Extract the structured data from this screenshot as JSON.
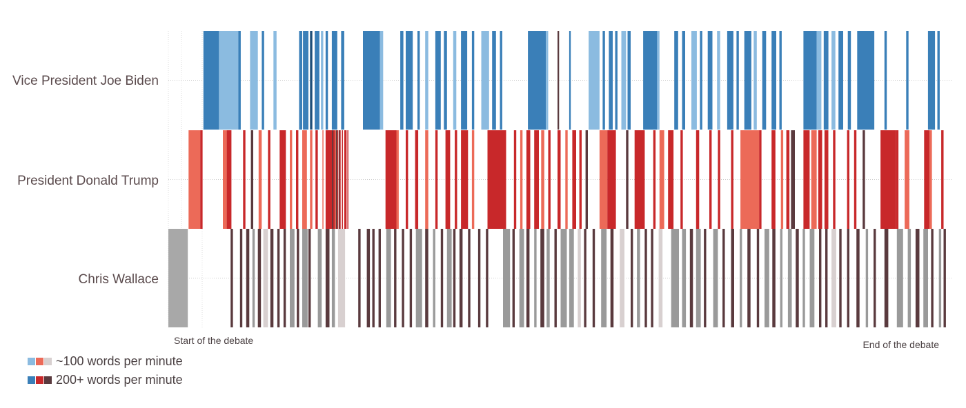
{
  "chart_data": {
    "type": "timeline",
    "rows": [
      {
        "label": "Vice President Joe Biden",
        "key": "biden",
        "color_light": "#8bbbe0",
        "color_dark": "#3a7fb8"
      },
      {
        "label": "President Donald Trump",
        "key": "trump",
        "color_light": "#ec6a58",
        "color_dark": "#c8282a"
      },
      {
        "label": "Chris Wallace",
        "key": "wallace",
        "color_light": "#d8d0d0",
        "color_dark": "#5a3a3e"
      }
    ],
    "x_start_label": "Start of the debate",
    "x_end_label": "End of the debate",
    "x_range": [
      0,
      100
    ],
    "grid": true,
    "segments": {
      "biden": [
        [
          4.5,
          2.0,
          "#3a7fb8"
        ],
        [
          6.5,
          2.5,
          "#8bbbe0"
        ],
        [
          9.0,
          0.3,
          "#3a7fb8"
        ],
        [
          10.5,
          1.0,
          "#8bbbe0"
        ],
        [
          12.0,
          0.3,
          "#3a7fb8"
        ],
        [
          13.5,
          0.4,
          "#8bbbe0"
        ],
        [
          16.8,
          0.4,
          "#3a7fb8"
        ],
        [
          17.3,
          0.7,
          "#3a7fb8"
        ],
        [
          18.2,
          0.3,
          "#1e4f7a"
        ],
        [
          18.8,
          0.6,
          "#3a7fb8"
        ],
        [
          19.6,
          0.3,
          "#8bbbe0"
        ],
        [
          20.2,
          0.3,
          "#3a7fb8"
        ],
        [
          21.0,
          0.7,
          "#3a7fb8"
        ],
        [
          22.2,
          0.4,
          "#3a7fb8"
        ],
        [
          25.0,
          2.2,
          "#3a7fb8"
        ],
        [
          27.2,
          0.4,
          "#8bbbe0"
        ],
        [
          29.8,
          0.4,
          "#3a7fb8"
        ],
        [
          30.5,
          0.9,
          "#3a7fb8"
        ],
        [
          32.0,
          0.3,
          "#3a7fb8"
        ],
        [
          33.0,
          0.4,
          "#8bbbe0"
        ],
        [
          34.3,
          0.7,
          "#3a7fb8"
        ],
        [
          35.4,
          0.4,
          "#3a7fb8"
        ],
        [
          36.6,
          0.4,
          "#8bbbe0"
        ],
        [
          37.6,
          0.8,
          "#3a7fb8"
        ],
        [
          39.0,
          0.3,
          "#3a7fb8"
        ],
        [
          40.2,
          1.0,
          "#8bbbe0"
        ],
        [
          41.6,
          0.5,
          "#3a7fb8"
        ],
        [
          42.6,
          0.3,
          "#3a7fb8"
        ],
        [
          46.2,
          2.3,
          "#3a7fb8"
        ],
        [
          48.5,
          0.3,
          "#8bbbe0"
        ],
        [
          50.0,
          0.2,
          "#5a3a3e"
        ],
        [
          51.5,
          0.2,
          "#3a7fb8"
        ],
        [
          54.0,
          1.4,
          "#8bbbe0"
        ],
        [
          55.8,
          0.3,
          "#3a7fb8"
        ],
        [
          56.6,
          0.5,
          "#3a7fb8"
        ],
        [
          57.4,
          0.3,
          "#3a7fb8"
        ],
        [
          58.2,
          0.6,
          "#8bbbe0"
        ],
        [
          59.0,
          0.4,
          "#3a7fb8"
        ],
        [
          61.0,
          1.8,
          "#3a7fb8"
        ],
        [
          62.8,
          0.3,
          "#8bbbe0"
        ],
        [
          65.0,
          0.5,
          "#3a7fb8"
        ],
        [
          66.0,
          0.4,
          "#3a7fb8"
        ],
        [
          67.2,
          0.7,
          "#8bbbe0"
        ],
        [
          68.3,
          0.3,
          "#3a7fb8"
        ],
        [
          69.3,
          0.6,
          "#3a7fb8"
        ],
        [
          70.5,
          0.4,
          "#8bbbe0"
        ],
        [
          71.8,
          0.8,
          "#3a7fb8"
        ],
        [
          73.0,
          0.3,
          "#3a7fb8"
        ],
        [
          74.0,
          0.9,
          "#3a7fb8"
        ],
        [
          75.2,
          0.4,
          "#8bbbe0"
        ],
        [
          76.3,
          0.5,
          "#3a7fb8"
        ],
        [
          77.5,
          0.6,
          "#3a7fb8"
        ],
        [
          78.5,
          0.3,
          "#3a7fb8"
        ],
        [
          81.6,
          1.7,
          "#3a7fb8"
        ],
        [
          83.3,
          0.6,
          "#8bbbe0"
        ],
        [
          84.2,
          0.6,
          "#3a7fb8"
        ],
        [
          85.2,
          0.5,
          "#8bbbe0"
        ],
        [
          86.1,
          0.6,
          "#3a7fb8"
        ],
        [
          87.3,
          0.4,
          "#3a7fb8"
        ],
        [
          88.5,
          2.2,
          "#3a7fb8"
        ],
        [
          92.0,
          0.3,
          "#3a7fb8"
        ],
        [
          94.8,
          0.3,
          "#3a7fb8"
        ],
        [
          97.6,
          0.9,
          "#3a7fb8"
        ],
        [
          98.8,
          0.3,
          "#3a7fb8"
        ]
      ],
      "trump": [
        [
          2.6,
          1.5,
          "#ec6a58"
        ],
        [
          4.1,
          0.3,
          "#c8282a"
        ],
        [
          7.0,
          0.5,
          "#ec6a58"
        ],
        [
          7.5,
          0.6,
          "#c8282a"
        ],
        [
          9.6,
          0.3,
          "#c8282a"
        ],
        [
          10.6,
          0.3,
          "#5a3a3e"
        ],
        [
          11.6,
          0.4,
          "#ec6a58"
        ],
        [
          12.8,
          0.3,
          "#c8282a"
        ],
        [
          14.3,
          0.8,
          "#c8282a"
        ],
        [
          15.6,
          0.3,
          "#ec6a58"
        ],
        [
          16.4,
          0.3,
          "#c8282a"
        ],
        [
          17.2,
          0.6,
          "#ec6a58"
        ],
        [
          18.2,
          0.3,
          "#ec6a58"
        ],
        [
          18.9,
          0.3,
          "#c8282a"
        ],
        [
          20.3,
          1.1,
          "#c8282a"
        ],
        [
          22.6,
          0.3,
          "#c8282a"
        ],
        [
          21.9,
          0.2,
          "#5a3a3e"
        ],
        [
          21.0,
          0.2,
          "#5a3a3e"
        ],
        [
          21.5,
          0.2,
          "#5a3a3e"
        ],
        [
          21.4,
          0.1,
          "#ec6a58"
        ],
        [
          20.9,
          0.1,
          "#c8282a"
        ],
        [
          20.5,
          0.1,
          "#c8282a"
        ],
        [
          20.2,
          0.1,
          "#c8282a"
        ],
        [
          19.8,
          0.1,
          "#ec6a58"
        ],
        [
          21.2,
          0.1,
          "#c8282a"
        ],
        [
          21.7,
          0.1,
          "#c8282a"
        ],
        [
          23.0,
          0.1,
          "#c8282a"
        ],
        [
          22.0,
          0.1,
          "#c8282a"
        ],
        [
          22.3,
          0.1,
          "#c8282a"
        ],
        [
          27.9,
          1.4,
          "#c8282a"
        ],
        [
          29.3,
          0.3,
          "#ec6a58"
        ],
        [
          30.5,
          0.3,
          "#c8282a"
        ],
        [
          31.7,
          0.4,
          "#c8282a"
        ],
        [
          33.0,
          0.4,
          "#ec6a58"
        ],
        [
          34.3,
          0.3,
          "#c8282a"
        ],
        [
          35.6,
          0.6,
          "#c8282a"
        ],
        [
          36.8,
          0.3,
          "#c8282a"
        ],
        [
          37.6,
          0.9,
          "#c8282a"
        ],
        [
          39.0,
          0.3,
          "#ec6a58"
        ],
        [
          41.0,
          2.0,
          "#c8282a"
        ],
        [
          43.0,
          0.4,
          "#c8282a"
        ],
        [
          44.4,
          0.3,
          "#c8282a"
        ],
        [
          45.2,
          0.3,
          "#ec6a58"
        ],
        [
          46.0,
          0.5,
          "#c8282a"
        ],
        [
          47.0,
          0.6,
          "#c8282a"
        ],
        [
          47.9,
          0.4,
          "#ec6a58"
        ],
        [
          48.8,
          0.3,
          "#c8282a"
        ],
        [
          50.0,
          0.4,
          "#c8282a"
        ],
        [
          51.0,
          0.3,
          "#ec6a58"
        ],
        [
          51.9,
          0.5,
          "#c8282a"
        ],
        [
          52.8,
          0.3,
          "#c8282a"
        ],
        [
          53.6,
          0.3,
          "#5a3a3e"
        ],
        [
          55.4,
          1.0,
          "#ec6a58"
        ],
        [
          56.4,
          1.1,
          "#c8282a"
        ],
        [
          58.8,
          0.3,
          "#5a3a3e"
        ],
        [
          59.9,
          1.3,
          "#c8282a"
        ],
        [
          62.3,
          0.3,
          "#c8282a"
        ],
        [
          63.1,
          0.6,
          "#ec6a58"
        ],
        [
          64.2,
          0.7,
          "#c8282a"
        ],
        [
          65.8,
          0.3,
          "#c8282a"
        ],
        [
          67.8,
          0.4,
          "#c8282a"
        ],
        [
          69.5,
          0.3,
          "#c8282a"
        ],
        [
          70.6,
          0.3,
          "#c8282a"
        ],
        [
          72.3,
          0.3,
          "#c8282a"
        ],
        [
          73.5,
          2.4,
          "#ec6a58"
        ],
        [
          75.9,
          0.3,
          "#c8282a"
        ],
        [
          77.5,
          0.5,
          "#c8282a"
        ],
        [
          78.7,
          0.3,
          "#ec6a58"
        ],
        [
          79.4,
          0.4,
          "#c8282a"
        ],
        [
          80.0,
          0.5,
          "#5a3a3e"
        ],
        [
          81.6,
          0.8,
          "#c8282a"
        ],
        [
          82.6,
          0.7,
          "#ec6a58"
        ],
        [
          83.5,
          0.5,
          "#c8282a"
        ],
        [
          84.3,
          0.5,
          "#c8282a"
        ],
        [
          85.4,
          0.3,
          "#c8282a"
        ],
        [
          87.2,
          0.3,
          "#c8282a"
        ],
        [
          88.1,
          0.3,
          "#c8282a"
        ],
        [
          89.2,
          0.3,
          "#5a3a3e"
        ],
        [
          91.5,
          2.0,
          "#c8282a"
        ],
        [
          93.5,
          0.3,
          "#c8282a"
        ],
        [
          94.6,
          0.6,
          "#ec6a58"
        ],
        [
          97.1,
          0.7,
          "#c8282a"
        ],
        [
          97.8,
          0.3,
          "#ec6a58"
        ],
        [
          99.3,
          0.3,
          "#c8282a"
        ]
      ],
      "wallace": [
        [
          0.0,
          2.5,
          "#a8a8a8"
        ],
        [
          8.0,
          0.3,
          "#5a3a3e"
        ],
        [
          9.2,
          0.3,
          "#5a3a3e"
        ],
        [
          10.0,
          0.4,
          "#5a3a3e"
        ],
        [
          10.8,
          0.3,
          "#9a9a9a"
        ],
        [
          11.5,
          0.4,
          "#5a3a3e"
        ],
        [
          12.2,
          0.6,
          "#d8d0d0"
        ],
        [
          13.1,
          0.4,
          "#5a3a3e"
        ],
        [
          14.0,
          0.3,
          "#5a3a3e"
        ],
        [
          14.8,
          0.3,
          "#5a3a3e"
        ],
        [
          15.6,
          0.6,
          "#9a9a9a"
        ],
        [
          16.5,
          0.3,
          "#5a3a3e"
        ],
        [
          17.2,
          0.7,
          "#9a9a9a"
        ],
        [
          18.0,
          0.3,
          "#5a3a3e"
        ],
        [
          19.2,
          0.5,
          "#9a9a9a"
        ],
        [
          20.2,
          0.5,
          "#5a3a3e"
        ],
        [
          21.0,
          0.4,
          "#9a9a9a"
        ],
        [
          21.8,
          0.9,
          "#d8d0d0"
        ],
        [
          24.4,
          0.3,
          "#5a3a3e"
        ],
        [
          25.5,
          0.4,
          "#5a3a3e"
        ],
        [
          26.2,
          0.3,
          "#5a3a3e"
        ],
        [
          27.0,
          0.3,
          "#5a3a3e"
        ],
        [
          28.0,
          0.6,
          "#9a9a9a"
        ],
        [
          29.0,
          0.3,
          "#5a3a3e"
        ],
        [
          30.0,
          0.3,
          "#5a3a3e"
        ],
        [
          31.0,
          0.3,
          "#5a3a3e"
        ],
        [
          31.8,
          0.8,
          "#9a9a9a"
        ],
        [
          33.0,
          0.4,
          "#5a3a3e"
        ],
        [
          34.0,
          0.3,
          "#9a9a9a"
        ],
        [
          35.0,
          0.3,
          "#5a3a3e"
        ],
        [
          35.8,
          0.6,
          "#9a9a9a"
        ],
        [
          36.6,
          0.3,
          "#5a3a3e"
        ],
        [
          37.4,
          0.4,
          "#5a3a3e"
        ],
        [
          38.5,
          0.3,
          "#5a3a3e"
        ],
        [
          39.8,
          0.3,
          "#5a3a3e"
        ],
        [
          40.8,
          0.3,
          "#5a3a3e"
        ],
        [
          43.0,
          0.9,
          "#9a9a9a"
        ],
        [
          44.2,
          0.3,
          "#5a3a3e"
        ],
        [
          45.1,
          0.6,
          "#9a9a9a"
        ],
        [
          46.0,
          0.4,
          "#5a3a3e"
        ],
        [
          47.0,
          0.3,
          "#9a9a9a"
        ],
        [
          47.8,
          0.5,
          "#5a3a3e"
        ],
        [
          48.6,
          0.4,
          "#9a9a9a"
        ],
        [
          49.6,
          0.3,
          "#5a3a3e"
        ],
        [
          50.4,
          0.8,
          "#9a9a9a"
        ],
        [
          51.5,
          0.6,
          "#9a9a9a"
        ],
        [
          52.6,
          0.4,
          "#d8d0d0"
        ],
        [
          53.4,
          0.3,
          "#5a3a3e"
        ],
        [
          54.5,
          0.3,
          "#5a3a3e"
        ],
        [
          55.6,
          0.7,
          "#9a9a9a"
        ],
        [
          56.8,
          0.4,
          "#5a3a3e"
        ],
        [
          58.0,
          0.6,
          "#d8d0d0"
        ],
        [
          59.4,
          0.3,
          "#5a3a3e"
        ],
        [
          60.2,
          0.4,
          "#9a9a9a"
        ],
        [
          61.2,
          0.3,
          "#5a3a3e"
        ],
        [
          62.0,
          0.3,
          "#5a3a3e"
        ],
        [
          63.0,
          0.5,
          "#d8d0d0"
        ],
        [
          64.6,
          1.0,
          "#9a9a9a"
        ],
        [
          66.0,
          0.5,
          "#9a9a9a"
        ],
        [
          67.0,
          0.4,
          "#5a3a3e"
        ],
        [
          67.8,
          0.6,
          "#9a9a9a"
        ],
        [
          68.8,
          0.3,
          "#5a3a3e"
        ],
        [
          70.0,
          0.6,
          "#9a9a9a"
        ],
        [
          71.2,
          0.3,
          "#5a3a3e"
        ],
        [
          72.3,
          0.4,
          "#5a3a3e"
        ],
        [
          73.4,
          0.3,
          "#9a9a9a"
        ],
        [
          74.4,
          0.4,
          "#5a3a3e"
        ],
        [
          75.6,
          0.3,
          "#5a3a3e"
        ],
        [
          76.6,
          0.6,
          "#9a9a9a"
        ],
        [
          77.6,
          0.4,
          "#5a3a3e"
        ],
        [
          78.6,
          0.3,
          "#9a9a9a"
        ],
        [
          79.6,
          0.5,
          "#9a9a9a"
        ],
        [
          80.6,
          0.4,
          "#5a3a3e"
        ],
        [
          81.5,
          0.3,
          "#9a9a9a"
        ],
        [
          82.4,
          0.6,
          "#9a9a9a"
        ],
        [
          83.6,
          0.3,
          "#5a3a3e"
        ],
        [
          84.4,
          0.3,
          "#5a3a3e"
        ],
        [
          85.2,
          0.6,
          "#d8d0d0"
        ],
        [
          86.2,
          0.3,
          "#5a3a3e"
        ],
        [
          87.2,
          0.3,
          "#5a3a3e"
        ],
        [
          88.4,
          0.4,
          "#5a3a3e"
        ],
        [
          89.6,
          0.3,
          "#9a9a9a"
        ],
        [
          90.6,
          0.3,
          "#5a3a3e"
        ],
        [
          92.0,
          0.5,
          "#5a3a3e"
        ],
        [
          93.6,
          0.8,
          "#9a9a9a"
        ],
        [
          95.0,
          0.4,
          "#9a9a9a"
        ],
        [
          96.0,
          0.5,
          "#5a3a3e"
        ],
        [
          97.0,
          0.6,
          "#9a9a9a"
        ],
        [
          98.0,
          0.3,
          "#5a3a3e"
        ],
        [
          99.0,
          0.3,
          "#9a9a9a"
        ],
        [
          99.6,
          0.3,
          "#5a3a3e"
        ]
      ]
    }
  },
  "legend": {
    "low_label": "~100 words per minute",
    "high_label": "200+ words per minute",
    "low_colors": [
      "#8bbbe0",
      "#ec6a58",
      "#d8d0d0"
    ],
    "high_colors": [
      "#3a7fb8",
      "#c8282a",
      "#5a3a3e"
    ]
  }
}
